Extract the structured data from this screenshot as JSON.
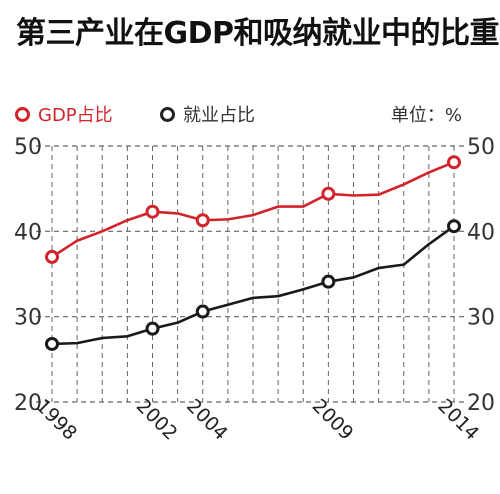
{
  "title": "第三产业在GDP和吸纳就业中的比重",
  "unit_label": "单位：%",
  "colors": {
    "gdp": "#d3242b",
    "employment": "#1a1a1a",
    "grid": "#666666"
  },
  "chart_data": {
    "type": "line",
    "title": "第三产业在GDP和吸纳就业中的比重",
    "xlabel": "",
    "ylabel": "",
    "unit": "%",
    "legend_position": "top-left",
    "grid": true,
    "x": [
      1998,
      1999,
      2000,
      2001,
      2002,
      2003,
      2004,
      2005,
      2006,
      2007,
      2008,
      2009,
      2010,
      2011,
      2012,
      2013,
      2014
    ],
    "xticks": [
      1998,
      2002,
      2004,
      2009,
      2014
    ],
    "ylim": [
      20,
      50
    ],
    "yticks": [
      20,
      30,
      40,
      50
    ],
    "series": [
      {
        "name": "GDP占比",
        "color": "#d3242b",
        "values": [
          37.0,
          38.9,
          40.0,
          41.3,
          42.3,
          42.1,
          41.3,
          41.4,
          41.9,
          42.9,
          42.9,
          44.4,
          44.2,
          44.3,
          45.5,
          46.9,
          48.1
        ],
        "markers": [
          1998,
          2002,
          2004,
          2009,
          2014
        ]
      },
      {
        "name": "就业占比",
        "color": "#1a1a1a",
        "values": [
          26.8,
          26.9,
          27.5,
          27.7,
          28.6,
          29.3,
          30.6,
          31.4,
          32.2,
          32.4,
          33.2,
          34.1,
          34.6,
          35.7,
          36.1,
          38.5,
          40.6
        ],
        "markers": [
          1998,
          2002,
          2004,
          2009,
          2014
        ]
      }
    ]
  }
}
